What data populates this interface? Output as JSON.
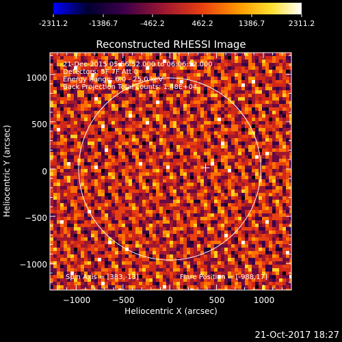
{
  "colorbar": {
    "ticks": [
      "-2311.2",
      "-1386.7",
      "-462.2",
      "462.2",
      "1386.7",
      "2311.2"
    ],
    "min": -2311.2,
    "max": 2311.2,
    "colormap": [
      "#0000ff",
      "#000020",
      "#3a004a",
      "#a01830",
      "#e84010",
      "#ff9a00",
      "#ffe030",
      "#ffffff"
    ]
  },
  "chart_data": {
    "type": "heatmap",
    "title": "Reconstructed RHESSI Image",
    "xlabel": "Heliocentric X (arcsec)",
    "ylabel": "Heliocentric Y (arcsec)",
    "xlim": [
      -1280,
      1300
    ],
    "ylim": [
      -1280,
      1230
    ],
    "xticks": [
      -1000,
      -500,
      0,
      500,
      1000
    ],
    "yticks": [
      -1000,
      -500,
      0,
      500,
      1000
    ],
    "xtick_labels": [
      "−1000",
      "−500",
      "0",
      "500",
      "1000"
    ],
    "ytick_labels": [
      "−1000",
      "−500",
      "0",
      "500",
      "1000"
    ],
    "solar_limb_radius": 973,
    "flare_marker": {
      "x": 383,
      "y": 13
    },
    "grid": false,
    "info_lines": [
      "21-Dec-2015 05:56:52.000 to 06:06:52.000",
      "Detectors: 5F 7F  Att 0",
      "Energy Range: 6.0 - 25.0 keV",
      "Back Projection    Total counts: 1.48E+04"
    ],
    "spin_axis": "Spin Axis = [383,-13]",
    "flare_position": "Flare Position = [-988,17]"
  },
  "footer": {
    "timestamp": "21-Oct-2017 18:27"
  }
}
